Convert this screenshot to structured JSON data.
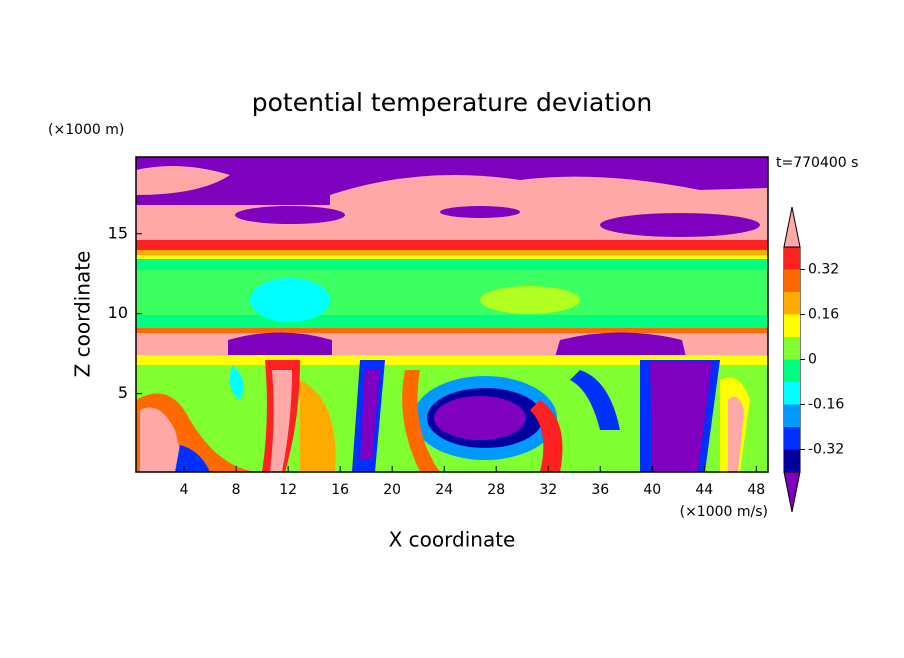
{
  "chart_data": {
    "type": "contour",
    "title": "potential temperature deviation",
    "x_label": "X coordinate",
    "y_label": "Z coordinate",
    "x_unit": "(×1000 m/s)",
    "y_unit": "(×1000 m)",
    "time_label": "t=770400 s",
    "xlim": [
      0.3,
      48.9
    ],
    "ylim": [
      0.1,
      19.8
    ],
    "xticks": [
      4,
      8,
      12,
      16,
      20,
      24,
      28,
      32,
      36,
      40,
      44,
      48
    ],
    "yticks": [
      5,
      10,
      15
    ],
    "levels": [
      -0.4,
      -0.32,
      -0.24,
      -0.16,
      -0.08,
      0,
      0.08,
      0.16,
      0.24,
      0.32,
      0.4
    ],
    "level_colors": [
      "#0000a0",
      "#0030ff",
      "#0099ff",
      "#00ffff",
      "#00ff80",
      "#80ff30",
      "#ffff00",
      "#ffaa00",
      "#ff6a00",
      "#ff2020"
    ],
    "under_color": "#7f00bf",
    "over_color": "#ffa8a8",
    "colorbar_ticks": [
      0.32,
      0.16,
      0,
      -0.16,
      -0.32
    ]
  }
}
